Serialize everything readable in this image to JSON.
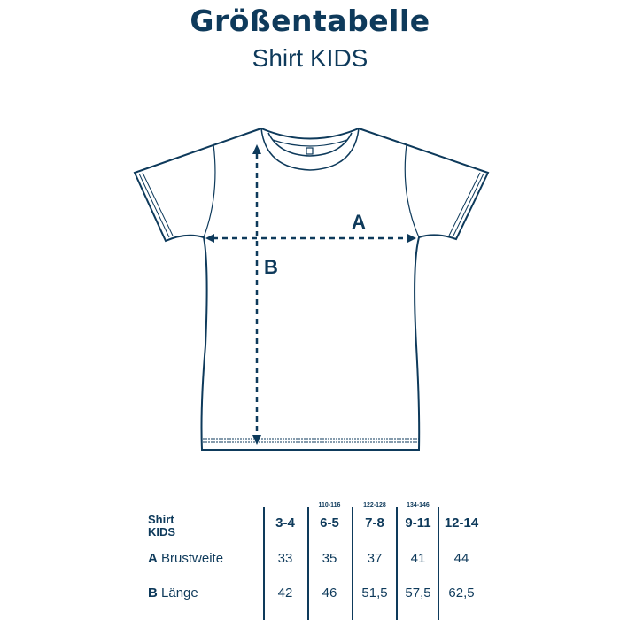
{
  "title": "Größentabelle",
  "subtitle": "Shirt KIDS",
  "diagram": {
    "label_a": "A",
    "label_b": "B"
  },
  "table": {
    "corner": [
      "Shirt",
      "KIDS"
    ],
    "columns": [
      {
        "size": "3-4",
        "sub": ""
      },
      {
        "size": "6-5",
        "sub": "110-116"
      },
      {
        "size": "7-8",
        "sub": "122-128"
      },
      {
        "size": "9-11",
        "sub": "134-146"
      },
      {
        "size": "12-14",
        "sub": ""
      }
    ],
    "rows": [
      {
        "key": "A",
        "label": "Brustweite",
        "values": [
          "33",
          "35",
          "37",
          "41",
          "44"
        ]
      },
      {
        "key": "B",
        "label": "Länge",
        "values": [
          "42",
          "46",
          "51,5",
          "57,5",
          "62,5"
        ]
      }
    ]
  },
  "colors": {
    "primary": "#0e3a5b"
  }
}
